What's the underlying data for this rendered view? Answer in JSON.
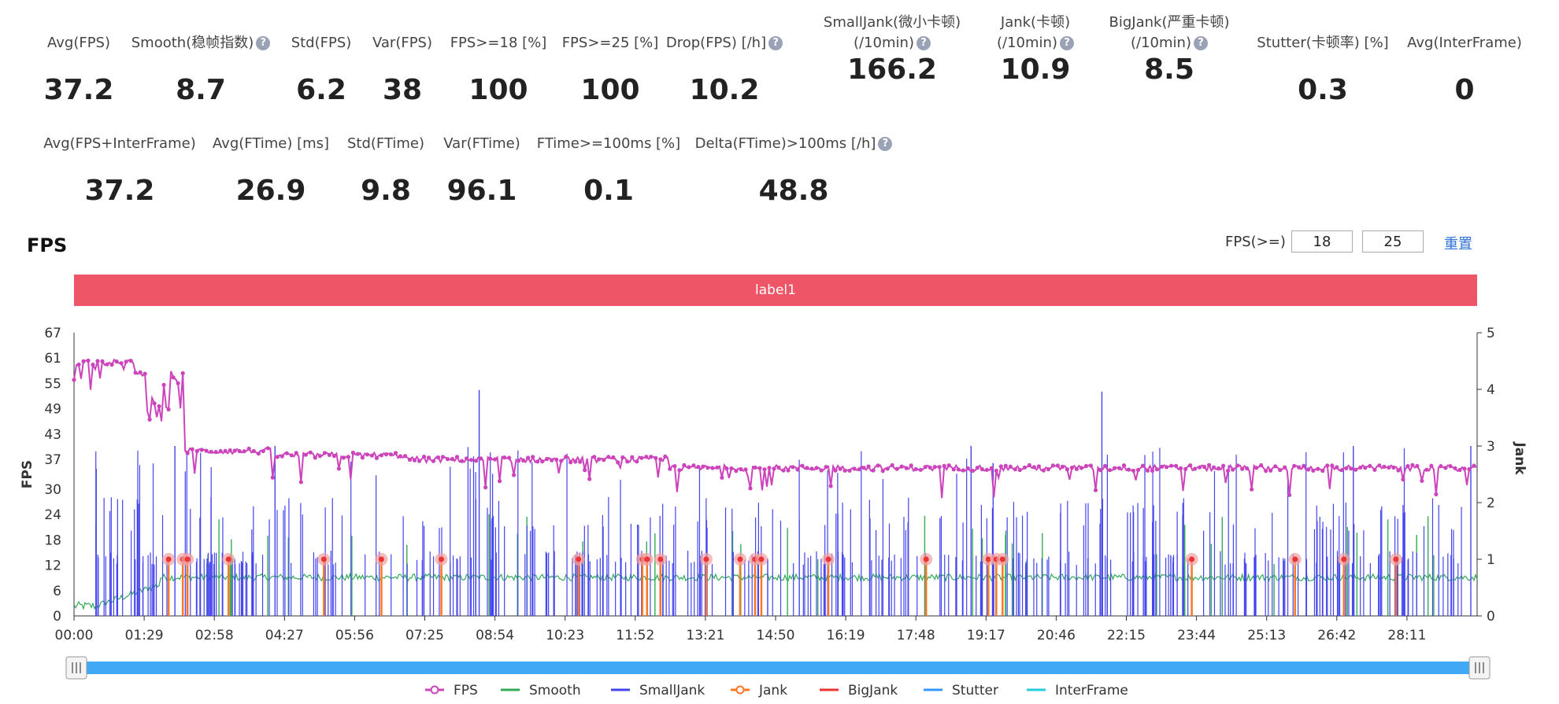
{
  "metrics_row1": [
    {
      "label": "Avg(FPS)",
      "value": "37.2",
      "help": false
    },
    {
      "label": "Smooth(稳帧指数)",
      "value": "8.7",
      "help": true
    },
    {
      "label": "Std(FPS)",
      "value": "6.2",
      "help": false
    },
    {
      "label": "Var(FPS)",
      "value": "38",
      "help": false
    },
    {
      "label": "FPS>=18 [%]",
      "value": "100",
      "help": false
    },
    {
      "label": "FPS>=25 [%]",
      "value": "100",
      "help": false
    },
    {
      "label": "Drop(FPS) [/h]",
      "value": "10.2",
      "help": true
    },
    {
      "label": "SmallJank(微小卡顿)",
      "label2": "(/10min)",
      "value": "166.2",
      "help": true
    },
    {
      "label": "Jank(卡顿)",
      "label2": "(/10min)",
      "value": "10.9",
      "help": true
    },
    {
      "label": "BigJank(严重卡顿)",
      "label2": "(/10min)",
      "value": "8.5",
      "help": true
    },
    {
      "label": "Stutter(卡顿率) [%]",
      "value": "0.3",
      "help": false
    },
    {
      "label": "Avg(InterFrame)",
      "value": "0",
      "help": false
    }
  ],
  "metrics_row2": [
    {
      "label": "Avg(FPS+InterFrame)",
      "value": "37.2",
      "help": false
    },
    {
      "label": "Avg(FTime) [ms]",
      "value": "26.9",
      "help": false
    },
    {
      "label": "Std(FTime)",
      "value": "9.8",
      "help": false
    },
    {
      "label": "Var(FTime)",
      "value": "96.1",
      "help": false
    },
    {
      "label": "FTime>=100ms [%]",
      "value": "0.1",
      "help": false
    },
    {
      "label": "Delta(FTime)>100ms [/h]",
      "value": "48.8",
      "help": true
    }
  ],
  "help_glyph": "?",
  "section_title": "FPS",
  "threshold": {
    "label": "FPS(>=)",
    "value1": "18",
    "value2": "25",
    "reset_label": "重置"
  },
  "label_band": "label1",
  "colors": {
    "fps": "#cc44bb",
    "smooth": "#33aa55",
    "smalljank": "#4444ee",
    "jank": "#ff7722",
    "bigjank": "#ee3333",
    "stutter": "#3399ff",
    "interframe": "#22ccdd",
    "slider": "#3fa9f5",
    "band": "#ee5566"
  },
  "chart_data": {
    "type": "line",
    "ylabel_left": "FPS",
    "ylabel_right": "Jank",
    "y_left_ticks": [
      0,
      6,
      12,
      18,
      24,
      30,
      37,
      43,
      49,
      55,
      61,
      67
    ],
    "y_left_range": [
      0,
      67
    ],
    "y_right_ticks": [
      0,
      1,
      2,
      3,
      4,
      5
    ],
    "y_right_range": [
      0,
      5
    ],
    "x_tick_labels": [
      "00:00",
      "01:29",
      "02:58",
      "04:27",
      "05:56",
      "07:25",
      "08:54",
      "10:23",
      "11:52",
      "13:21",
      "14:50",
      "16:19",
      "17:48",
      "19:17",
      "20:46",
      "22:15",
      "23:44",
      "25:13",
      "26:42",
      "28:11"
    ],
    "x_tick_seconds": [
      0,
      89,
      178,
      267,
      356,
      445,
      534,
      623,
      712,
      801,
      890,
      979,
      1068,
      1157,
      1246,
      1335,
      1424,
      1513,
      1602,
      1691
    ],
    "x_range_seconds": [
      0,
      1780
    ],
    "legend": [
      "FPS",
      "Smooth",
      "SmallJank",
      "Jank",
      "BigJank",
      "Stutter",
      "InterFrame"
    ],
    "fps_segments": [
      {
        "t": [
          0,
          75
        ],
        "value": 60
      },
      {
        "t": [
          75,
          90
        ],
        "value": 57
      },
      {
        "t": [
          90,
          115
        ],
        "value": 51
      },
      {
        "t": [
          115,
          138
        ],
        "value": 53
      },
      {
        "t": [
          138,
          252
        ],
        "value": 39
      },
      {
        "t": [
          252,
          420
        ],
        "value": 38
      },
      {
        "t": [
          420,
          755
        ],
        "value": 37
      },
      {
        "t": [
          755,
          1780
        ],
        "value": 35
      }
    ],
    "bigjank_markers_seconds": [
      120,
      138,
      144,
      196,
      317,
      390,
      466,
      640,
      721,
      727,
      744,
      802,
      845,
      864,
      872,
      957,
      1081,
      1160,
      1170,
      1178,
      1418,
      1549,
      1611,
      1677
    ]
  }
}
